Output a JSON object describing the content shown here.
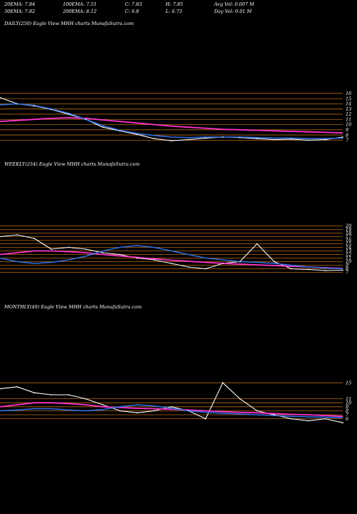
{
  "header": {
    "row1": [
      {
        "label": "20EMA:",
        "value": "7.84"
      },
      {
        "label": "100EMA:",
        "value": "7.51"
      },
      {
        "label": "C:",
        "value": "7.83"
      },
      {
        "label": "H:",
        "value": "7.85"
      },
      {
        "label": "Avg Vol:",
        "value": "0.007 M"
      }
    ],
    "row2": [
      {
        "label": "30EMA:",
        "value": "7.82"
      },
      {
        "label": "200EMA:",
        "value": "8.12"
      },
      {
        "label": "C:",
        "value": "6.8"
      },
      {
        "label": "L:",
        "value": "6.73"
      },
      {
        "label": "Day Vol:",
        "value": "0.01 M"
      }
    ]
  },
  "colors": {
    "background": "#000000",
    "price": "#ffffff",
    "ema_magenta": "#ff33cc",
    "ema_blue": "#2f6fe0",
    "level_lines": "#b86a10"
  },
  "chart_data": [
    {
      "type": "line",
      "title": "DAILY(250) Eagle  View  MHH charts MunafaSutra.com",
      "yticks": [
        16,
        15,
        14,
        13,
        12,
        11,
        10,
        9,
        8,
        7
      ],
      "ylim": [
        6.5,
        16.8
      ],
      "x": [
        0,
        5,
        10,
        15,
        20,
        25,
        30,
        35,
        40,
        45,
        50,
        55,
        60,
        65,
        70,
        75,
        80,
        85,
        90,
        95,
        100
      ],
      "series": [
        {
          "role": "price",
          "values": [
            15.2,
            14.0,
            13.6,
            12.9,
            12.0,
            11.0,
            9.5,
            8.8,
            8.1,
            7.3,
            6.9,
            7.1,
            7.4,
            7.6,
            7.5,
            7.3,
            7.1,
            7.2,
            7.0,
            7.1,
            7.6
          ]
        },
        {
          "role": "ema-magenta",
          "values": [
            10.6,
            10.8,
            11.0,
            11.2,
            11.3,
            11.2,
            10.9,
            10.6,
            10.3,
            10.0,
            9.7,
            9.5,
            9.3,
            9.1,
            9.0,
            8.9,
            8.8,
            8.7,
            8.6,
            8.5,
            8.4
          ]
        },
        {
          "role": "ema-blue",
          "values": [
            13.8,
            14.0,
            13.7,
            13.0,
            12.2,
            11.0,
            9.8,
            8.9,
            8.3,
            7.9,
            7.6,
            7.5,
            7.6,
            7.6,
            7.6,
            7.5,
            7.4,
            7.4,
            7.3,
            7.3,
            7.4
          ]
        }
      ],
      "levels": [
        16,
        15,
        14,
        13,
        12,
        11,
        10,
        9,
        8,
        7
      ]
    },
    {
      "type": "line",
      "title": "WEEKLY(254) Eagle  View  MHH charts MunafaSutra.com",
      "yticks": [
        20,
        19,
        18,
        17,
        16,
        15,
        14,
        13,
        12,
        11,
        10,
        9,
        8,
        7
      ],
      "ylim": [
        6.5,
        20.5
      ],
      "x": [
        0,
        5,
        10,
        15,
        20,
        25,
        30,
        35,
        40,
        45,
        50,
        55,
        60,
        65,
        70,
        75,
        80,
        85,
        90,
        95,
        100
      ],
      "series": [
        {
          "role": "price",
          "values": [
            17.0,
            17.5,
            16.5,
            13.5,
            14.0,
            13.5,
            12.5,
            12.0,
            11.0,
            10.5,
            9.5,
            8.5,
            8.0,
            9.5,
            10.0,
            15.0,
            10.0,
            8.0,
            7.8,
            7.5,
            7.6
          ]
        },
        {
          "role": "ema-magenta",
          "values": [
            12.0,
            12.5,
            13.0,
            13.0,
            12.8,
            12.5,
            12.0,
            11.6,
            11.2,
            10.8,
            10.4,
            10.1,
            9.8,
            9.5,
            9.3,
            9.1,
            8.9,
            8.7,
            8.5,
            8.3,
            8.1
          ]
        },
        {
          "role": "ema-blue",
          "values": [
            11.0,
            10.0,
            9.5,
            9.8,
            10.5,
            11.5,
            13.0,
            14.0,
            14.5,
            14.0,
            13.0,
            12.0,
            11.0,
            10.5,
            10.0,
            9.8,
            9.5,
            9.0,
            8.5,
            8.2,
            8.0
          ]
        }
      ],
      "levels": [
        20,
        19,
        18,
        17,
        16,
        15,
        14,
        13,
        12,
        11,
        10,
        9,
        8,
        7
      ]
    },
    {
      "type": "line",
      "title": "MONTHLY(49) Eagle  View  MHH charts MunafaSutra.com",
      "yticks": [
        15,
        11,
        10,
        9,
        8,
        7,
        6
      ],
      "ylim": [
        4.5,
        17
      ],
      "x": [
        0,
        5,
        10,
        15,
        20,
        25,
        30,
        35,
        40,
        45,
        50,
        55,
        60,
        65,
        70,
        75,
        80,
        85,
        90,
        95,
        100
      ],
      "series": [
        {
          "role": "price",
          "values": [
            13.5,
            14.0,
            12.5,
            12.0,
            12.0,
            11.0,
            9.5,
            8.0,
            7.5,
            8.0,
            9.0,
            8.0,
            6.0,
            15.0,
            11.0,
            8.0,
            7.0,
            6.0,
            5.5,
            6.0,
            5.0
          ]
        },
        {
          "role": "ema-magenta",
          "values": [
            9.0,
            9.5,
            10.0,
            10.0,
            9.8,
            9.5,
            9.0,
            8.8,
            8.6,
            8.5,
            8.4,
            8.2,
            8.0,
            7.8,
            7.6,
            7.5,
            7.3,
            7.1,
            7.0,
            6.8,
            6.6
          ]
        },
        {
          "role": "ema-blue",
          "values": [
            8.0,
            8.2,
            8.5,
            8.5,
            8.2,
            8.0,
            8.3,
            9.0,
            9.5,
            9.2,
            8.6,
            8.0,
            7.6,
            7.4,
            7.2,
            7.0,
            6.8,
            6.6,
            6.5,
            6.4,
            6.3
          ]
        }
      ],
      "levels": [
        15,
        11,
        10,
        9,
        8,
        7,
        6
      ]
    }
  ]
}
